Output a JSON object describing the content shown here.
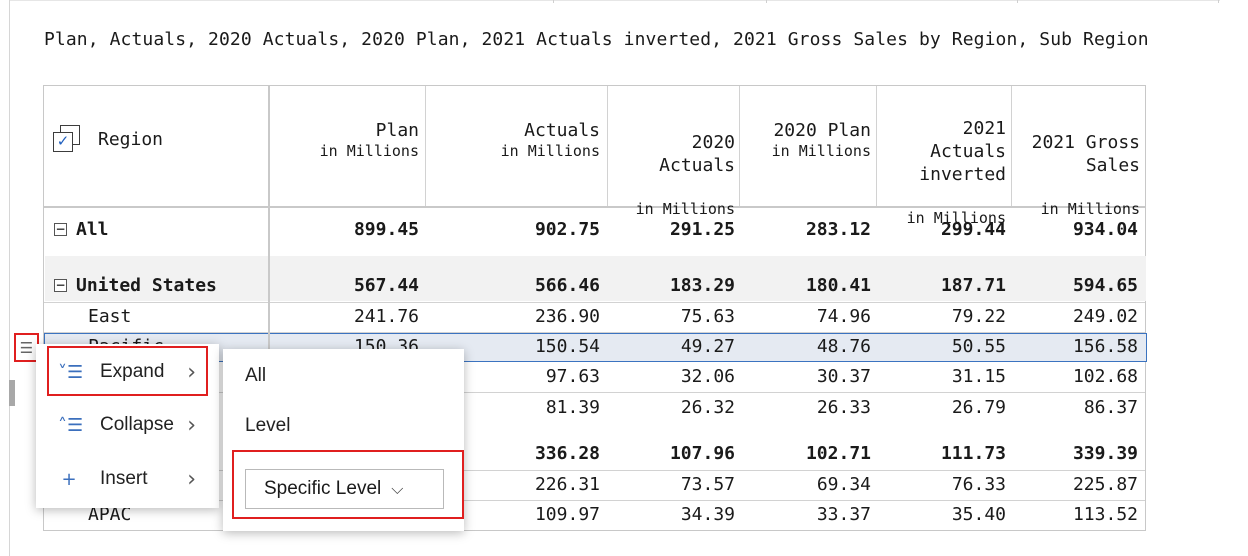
{
  "caption": "Plan, Actuals, 2020 Actuals, 2020 Plan, 2021 Actuals inverted, 2021 Gross Sales by Region, Sub Region",
  "header": {
    "region_label": "Region",
    "columns": [
      {
        "title": "Plan",
        "sub": "in Millions"
      },
      {
        "title": "Actuals",
        "sub": "in Millions"
      },
      {
        "title": "2020\nActuals",
        "sub": "in Millions"
      },
      {
        "title": "2020 Plan",
        "sub": "in Millions"
      },
      {
        "title": "2021\nActuals\ninverted",
        "sub": "in Millions"
      },
      {
        "title": "2021 Gross\nSales",
        "sub": "in Millions"
      }
    ]
  },
  "rows": [
    {
      "label": "All",
      "toggle": "−",
      "values": [
        "899.45",
        "902.75",
        "291.25",
        "283.12",
        "299.44",
        "934.04"
      ]
    },
    {
      "label": "United States",
      "toggle": "−",
      "values": [
        "567.44",
        "566.46",
        "183.29",
        "180.41",
        "187.71",
        "594.65"
      ]
    },
    {
      "label": "East",
      "values": [
        "241.76",
        "236.90",
        "75.63",
        "74.96",
        "79.22",
        "249.02"
      ]
    },
    {
      "label": "Pacific",
      "values": [
        "150.36",
        "150.54",
        "49.27",
        "48.76",
        "50.55",
        "156.58"
      ]
    },
    {
      "label": "",
      "values": [
        "",
        "97.63",
        "32.06",
        "30.37",
        "31.15",
        "102.68"
      ]
    },
    {
      "label": "",
      "values": [
        "",
        "81.39",
        "26.32",
        "26.33",
        "26.79",
        "86.37"
      ]
    },
    {
      "label": "",
      "values": [
        "",
        "336.28",
        "107.96",
        "102.71",
        "111.73",
        "339.39"
      ]
    },
    {
      "label": "",
      "values": [
        "",
        "226.31",
        "73.57",
        "69.34",
        "76.33",
        "225.87"
      ]
    },
    {
      "label": "APAC",
      "values": [
        "",
        "109.97",
        "34.39",
        "33.37",
        "35.40",
        "113.52"
      ]
    }
  ],
  "context_menu": {
    "expand": "Expand",
    "collapse": "Collapse",
    "insert": "Insert",
    "submenu": {
      "all": "All",
      "level": "Level",
      "specific_level": "Specific Level"
    }
  },
  "colors": {
    "highlight_border": "#e01f1f",
    "selected_row": "#e5eaf2",
    "accent": "#3b6fbd"
  }
}
